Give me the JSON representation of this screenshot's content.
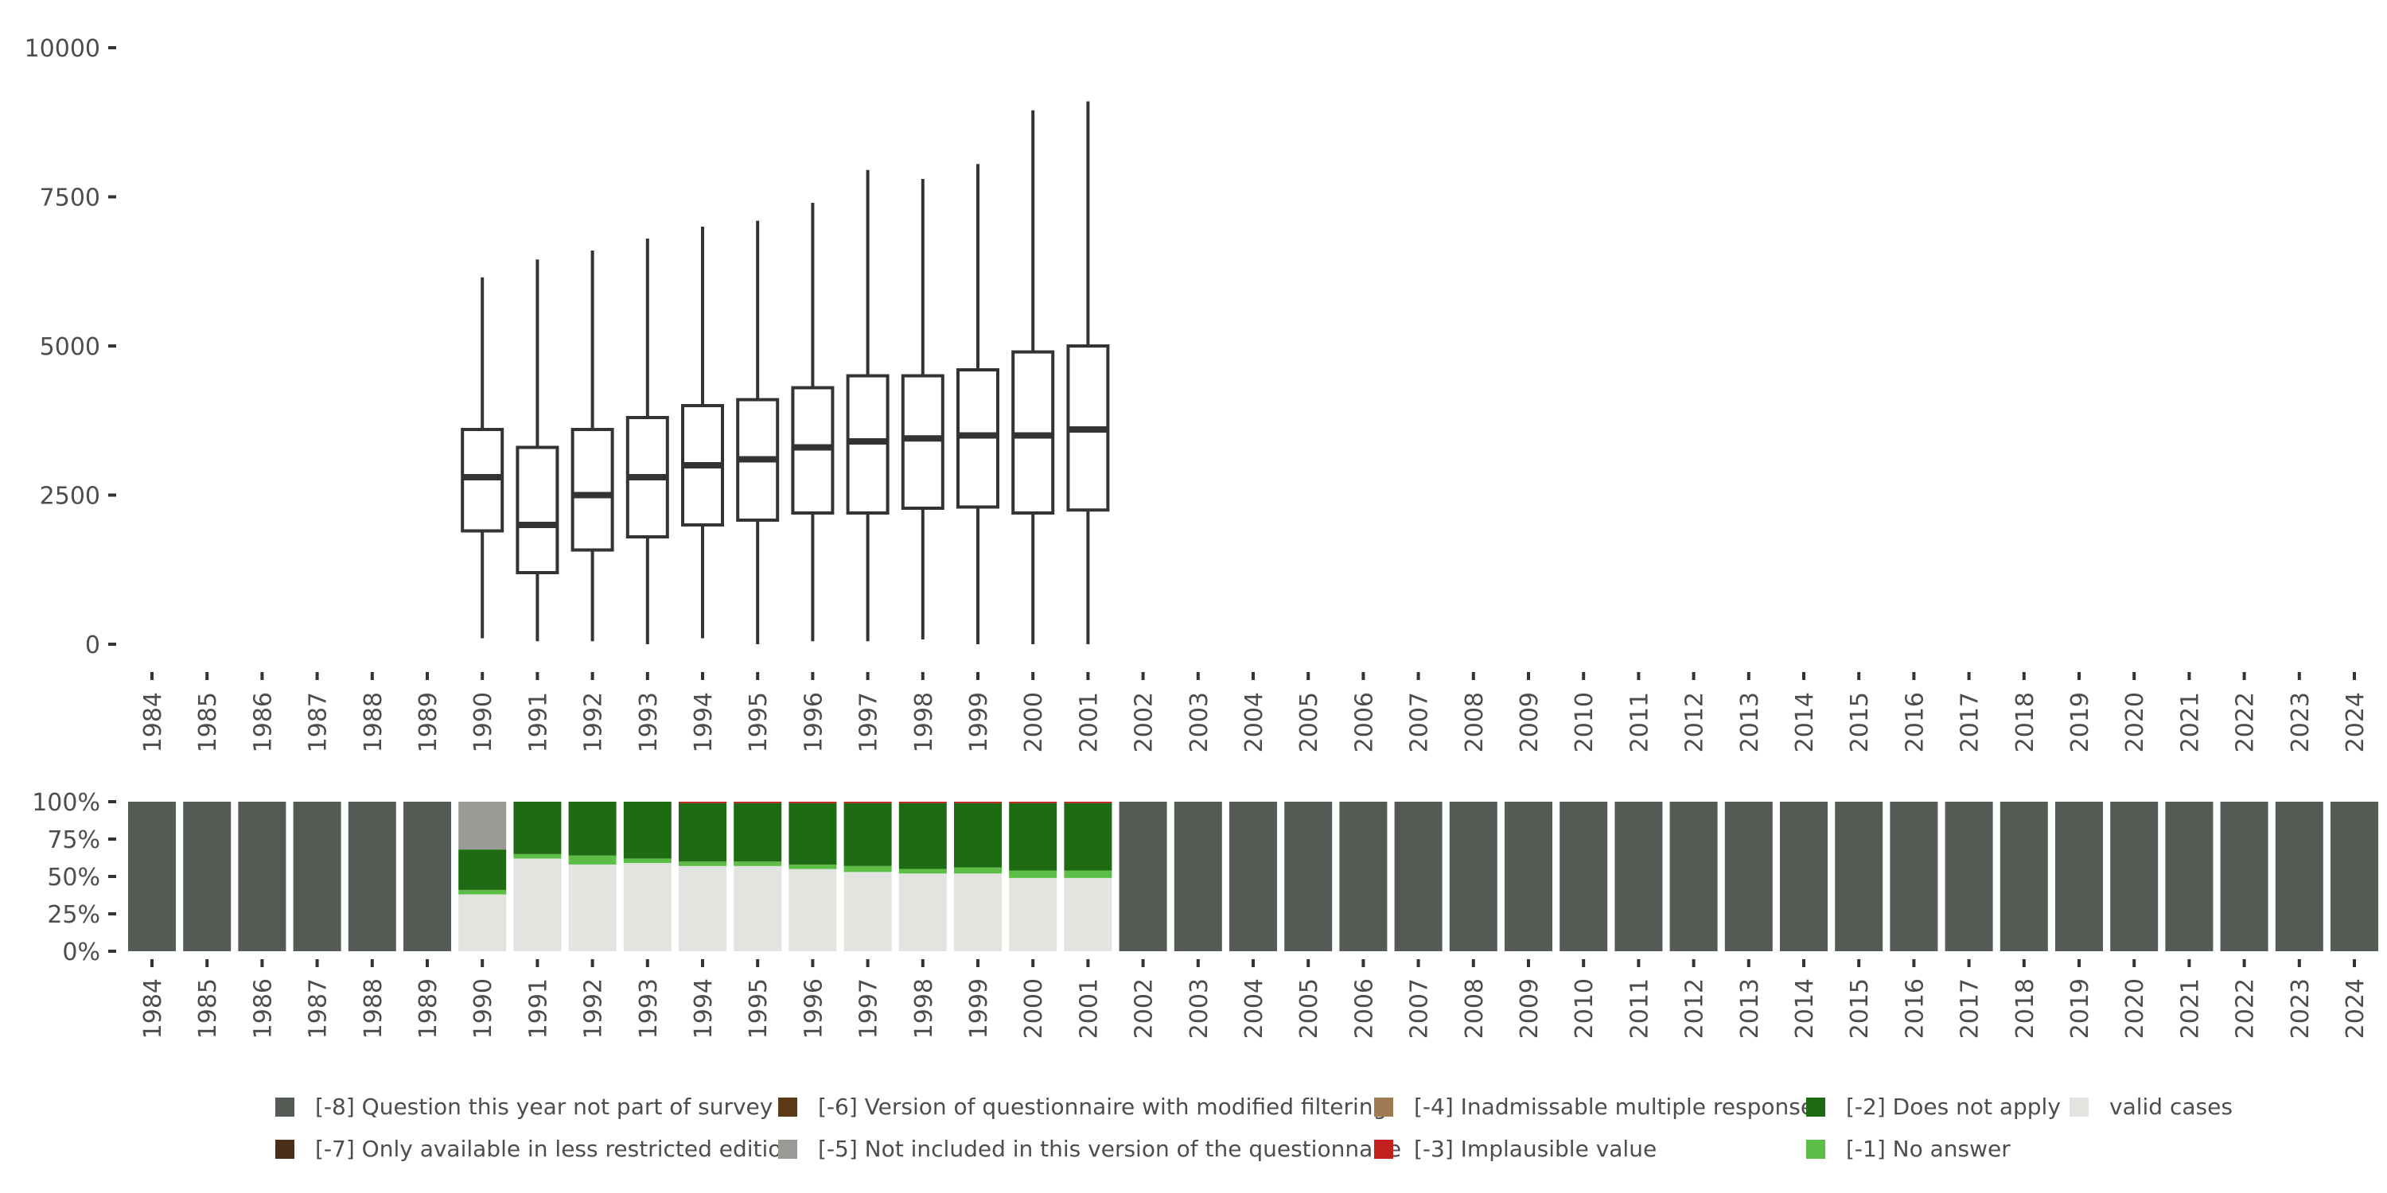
{
  "chart_data": [
    {
      "type": "boxplot",
      "title": "",
      "xlabel": "",
      "ylabel": "",
      "ylim": [
        0,
        10000
      ],
      "y_ticks": [
        0,
        2500,
        5000,
        7500,
        10000
      ],
      "categories": [
        "1984",
        "1985",
        "1986",
        "1987",
        "1988",
        "1989",
        "1990",
        "1991",
        "1992",
        "1993",
        "1994",
        "1995",
        "1996",
        "1997",
        "1998",
        "1999",
        "2000",
        "2001",
        "2002",
        "2003",
        "2004",
        "2005",
        "2006",
        "2007",
        "2008",
        "2009",
        "2010",
        "2011",
        "2012",
        "2013",
        "2014",
        "2015",
        "2016",
        "2017",
        "2018",
        "2019",
        "2020",
        "2021",
        "2022",
        "2023",
        "2024"
      ],
      "boxes": [
        {
          "year": "1990",
          "min": 100,
          "q1": 1900,
          "median": 2800,
          "q3": 3600,
          "max": 6150
        },
        {
          "year": "1991",
          "min": 50,
          "q1": 1200,
          "median": 2000,
          "q3": 3300,
          "max": 6450
        },
        {
          "year": "1992",
          "min": 50,
          "q1": 1580,
          "median": 2500,
          "q3": 3600,
          "max": 6600
        },
        {
          "year": "1993",
          "min": 0,
          "q1": 1800,
          "median": 2800,
          "q3": 3800,
          "max": 6800
        },
        {
          "year": "1994",
          "min": 100,
          "q1": 2000,
          "median": 3000,
          "q3": 4000,
          "max": 7000
        },
        {
          "year": "1995",
          "min": 0,
          "q1": 2080,
          "median": 3100,
          "q3": 4100,
          "max": 7100
        },
        {
          "year": "1996",
          "min": 50,
          "q1": 2200,
          "median": 3300,
          "q3": 4300,
          "max": 7400
        },
        {
          "year": "1997",
          "min": 50,
          "q1": 2200,
          "median": 3400,
          "q3": 4500,
          "max": 7950
        },
        {
          "year": "1998",
          "min": 80,
          "q1": 2280,
          "median": 3450,
          "q3": 4500,
          "max": 7800
        },
        {
          "year": "1999",
          "min": 0,
          "q1": 2300,
          "median": 3500,
          "q3": 4600,
          "max": 8050
        },
        {
          "year": "2000",
          "min": 0,
          "q1": 2200,
          "median": 3500,
          "q3": 4900,
          "max": 8950
        },
        {
          "year": "2001",
          "min": 0,
          "q1": 2250,
          "median": 3600,
          "q3": 5000,
          "max": 9100
        }
      ]
    },
    {
      "type": "stacked-bar-percent",
      "ylim": [
        0,
        1
      ],
      "y_ticks": [
        "0%",
        "25%",
        "50%",
        "75%",
        "100%"
      ],
      "categories": [
        "1984",
        "1985",
        "1986",
        "1987",
        "1988",
        "1989",
        "1990",
        "1991",
        "1992",
        "1993",
        "1994",
        "1995",
        "1996",
        "1997",
        "1998",
        "1999",
        "2000",
        "2001",
        "2002",
        "2003",
        "2004",
        "2005",
        "2006",
        "2007",
        "2008",
        "2009",
        "2010",
        "2011",
        "2012",
        "2013",
        "2014",
        "2015",
        "2016",
        "2017",
        "2018",
        "2019",
        "2020",
        "2021",
        "2022",
        "2023",
        "2024"
      ],
      "series": [
        {
          "key": "valid",
          "name": "valid cases",
          "color": "#e1e4df",
          "values": [
            0,
            0,
            0,
            0,
            0,
            0,
            0.38,
            0.62,
            0.58,
            0.59,
            0.57,
            0.57,
            0.55,
            0.53,
            0.52,
            0.52,
            0.49,
            0.49,
            0,
            0,
            0,
            0,
            0,
            0,
            0,
            0,
            0,
            0,
            0,
            0,
            0,
            0,
            0,
            0,
            0,
            0,
            0,
            0,
            0,
            0,
            0
          ]
        },
        {
          "key": "m1",
          "name": "[-1] No answer",
          "color": "#5cbe46",
          "values": [
            0,
            0,
            0,
            0,
            0,
            0,
            0.03,
            0.03,
            0.06,
            0.03,
            0.03,
            0.03,
            0.03,
            0.04,
            0.03,
            0.04,
            0.05,
            0.05,
            0,
            0,
            0,
            0,
            0,
            0,
            0,
            0,
            0,
            0,
            0,
            0,
            0,
            0,
            0,
            0,
            0,
            0,
            0,
            0,
            0,
            0,
            0
          ]
        },
        {
          "key": "m2",
          "name": "[-2] Does not apply",
          "color": "#1e6b13",
          "values": [
            0,
            0,
            0,
            0,
            0,
            0,
            0.27,
            0.35,
            0.36,
            0.38,
            0.39,
            0.39,
            0.41,
            0.42,
            0.44,
            0.43,
            0.45,
            0.45,
            0,
            0,
            0,
            0,
            0,
            0,
            0,
            0,
            0,
            0,
            0,
            0,
            0,
            0,
            0,
            0,
            0,
            0,
            0,
            0,
            0,
            0,
            0
          ]
        },
        {
          "key": "m3",
          "name": "[-3] Implausible value",
          "color": "#c21f1f",
          "values": [
            0,
            0,
            0,
            0,
            0,
            0,
            0,
            0,
            0,
            0,
            0.01,
            0.01,
            0.01,
            0.01,
            0.01,
            0.01,
            0.01,
            0.01,
            0,
            0,
            0,
            0,
            0,
            0,
            0,
            0,
            0,
            0,
            0,
            0,
            0,
            0,
            0,
            0,
            0,
            0,
            0,
            0,
            0,
            0,
            0
          ]
        },
        {
          "key": "m5",
          "name": "[-5] Not included in this version of the questionnaire",
          "color": "#999b96",
          "values": [
            0,
            0,
            0,
            0,
            0,
            0,
            0.32,
            0,
            0,
            0,
            0,
            0,
            0,
            0,
            0,
            0,
            0,
            0,
            0,
            0,
            0,
            0,
            0,
            0,
            0,
            0,
            0,
            0,
            0,
            0,
            0,
            0,
            0,
            0,
            0,
            0,
            0,
            0,
            0,
            0,
            0
          ]
        },
        {
          "key": "m8",
          "name": "[-8] Question this year not part of survey",
          "color": "#545b55",
          "values": [
            1,
            1,
            1,
            1,
            1,
            1,
            0,
            0,
            0,
            0,
            0,
            0,
            0,
            0,
            0,
            0,
            0,
            0,
            1,
            1,
            1,
            1,
            1,
            1,
            1,
            1,
            1,
            1,
            1,
            1,
            1,
            1,
            1,
            1,
            1,
            1,
            1,
            1,
            1,
            1,
            1
          ]
        }
      ]
    }
  ],
  "legend": {
    "items": [
      {
        "label": "[-8] Question this year not part of survey",
        "color": "#545b55"
      },
      {
        "label": "[-6] Version of questionnaire with modified filtering",
        "color": "#5c3a17"
      },
      {
        "label": "[-4] Inadmissable multiple response",
        "color": "#a07a50"
      },
      {
        "label": "[-2] Does not apply",
        "color": "#1e6b13"
      },
      {
        "label": "valid cases",
        "color": "#e1e4df"
      },
      {
        "label": "[-7] Only available in less restricted edition",
        "color": "#4a2e17"
      },
      {
        "label": "[-5] Not included in this version of the questionnaire",
        "color": "#999b96"
      },
      {
        "label": "[-3] Implausible value",
        "color": "#c21f1f"
      },
      {
        "label": "[-1] No answer",
        "color": "#5cbe46"
      }
    ]
  }
}
